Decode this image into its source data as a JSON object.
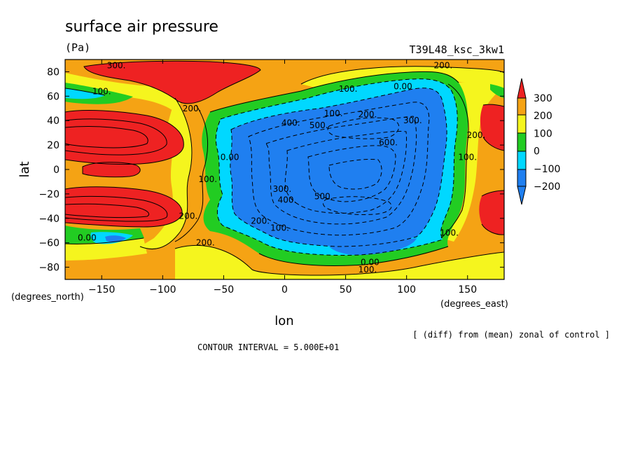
{
  "chart_data": {
    "type": "heatmap",
    "title": "surface air pressure",
    "units": "(Pa)",
    "run_id": "T39L48_ksc_3kw1",
    "xlabel": "lon",
    "ylabel": "lat",
    "x_unit_label": "(degrees_east)",
    "y_unit_label": "(degrees_north)",
    "xlim": [
      -180,
      180
    ],
    "ylim": [
      -90,
      90
    ],
    "x_ticks": [
      -150,
      -100,
      -50,
      0,
      50,
      100,
      150
    ],
    "y_ticks": [
      -80,
      -60,
      -40,
      -20,
      0,
      20,
      40,
      60,
      80
    ],
    "x_tick_labels": [
      "−150",
      "−100",
      "−50",
      "0",
      "50",
      "100",
      "150"
    ],
    "y_tick_labels": [
      "−80",
      "−60",
      "−40",
      "−20",
      "0",
      "20",
      "40",
      "60",
      "80"
    ],
    "colorbar": {
      "levels": [
        -200,
        -100,
        0,
        100,
        200,
        300
      ],
      "labels": [
        "−200",
        "−100",
        "0",
        "100",
        "200",
        "300"
      ],
      "colors": {
        "below": "#1f7ff0",
        "-200": "#1f7ff0",
        "-100": "#00d8ff",
        "0": "#22cc22",
        "100": "#f5f51e",
        "200": "#f5a314",
        "above": "#ee2222"
      }
    },
    "contour_labels": [
      {
        "text": "300.",
        "lon": -138,
        "lat": 85
      },
      {
        "text": "200.",
        "lon": 130,
        "lat": 85
      },
      {
        "text": "100.",
        "lon": -150,
        "lat": 64
      },
      {
        "text": "100.",
        "lon": 52,
        "lat": 66
      },
      {
        "text": "0.00",
        "lon": 97,
        "lat": 68
      },
      {
        "text": "200.",
        "lon": -76,
        "lat": 50
      },
      {
        "text": "100.",
        "lon": 40,
        "lat": 46
      },
      {
        "text": "200.",
        "lon": 68,
        "lat": 45
      },
      {
        "text": "300.",
        "lon": 105,
        "lat": 40
      },
      {
        "text": "400.",
        "lon": 5,
        "lat": 38
      },
      {
        "text": "500.",
        "lon": 28,
        "lat": 36
      },
      {
        "text": "600.",
        "lon": 85,
        "lat": 22
      },
      {
        "text": "200.",
        "lon": 157,
        "lat": 28
      },
      {
        "text": "100.",
        "lon": 150,
        "lat": 10
      },
      {
        "text": "0.00",
        "lon": -45,
        "lat": 10
      },
      {
        "text": "100.",
        "lon": -63,
        "lat": -8
      },
      {
        "text": "300.",
        "lon": -2,
        "lat": -16
      },
      {
        "text": "400.",
        "lon": 2,
        "lat": -25
      },
      {
        "text": "500.",
        "lon": 32,
        "lat": -22
      },
      {
        "text": "200.",
        "lon": -79,
        "lat": -38
      },
      {
        "text": "200.",
        "lon": -20,
        "lat": -42
      },
      {
        "text": "100.",
        "lon": -4,
        "lat": -48
      },
      {
        "text": "200.",
        "lon": -65,
        "lat": -60
      },
      {
        "text": "100.",
        "lon": 135,
        "lat": -52
      },
      {
        "text": "0.00",
        "lon": 70,
        "lat": -76
      },
      {
        "text": "100.",
        "lon": 68,
        "lat": -82
      },
      {
        "text": "0.00",
        "lon": -162,
        "lat": -56
      }
    ],
    "note_right": "[ (diff) from (mean) zonal of control ]",
    "contour_interval_text": "CONTOUR INTERVAL = 5.000E+01"
  }
}
